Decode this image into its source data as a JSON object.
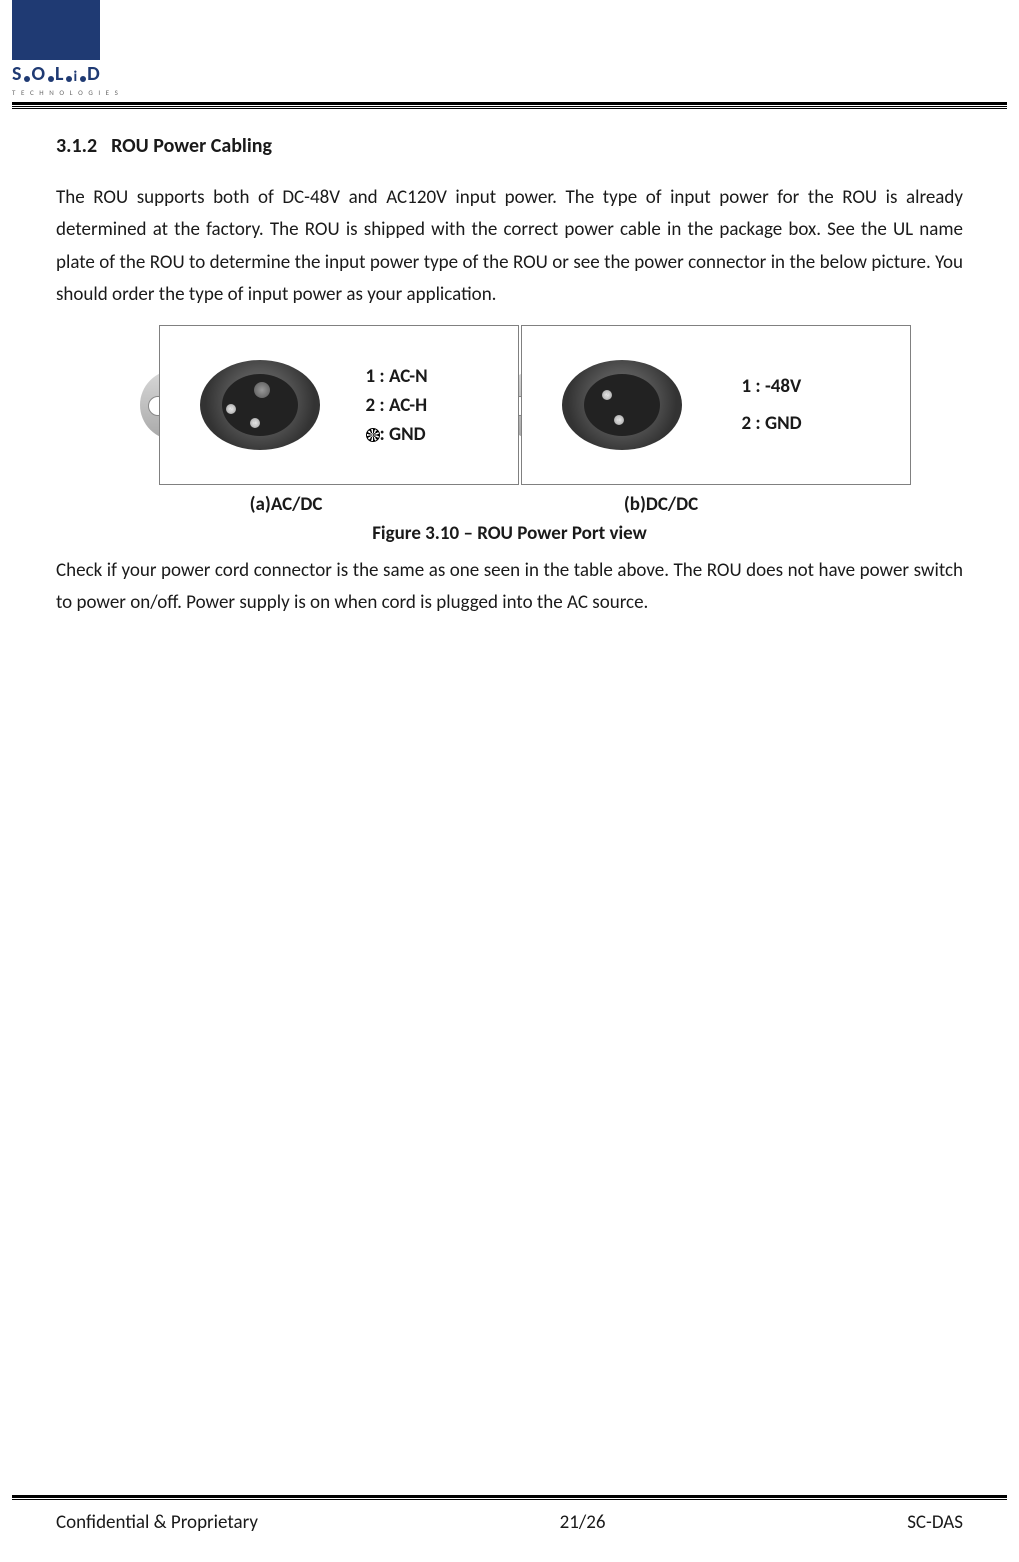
{
  "logo": {
    "brand_letters": "S O L i D",
    "subtitle": "T E C H N O L O G I E S"
  },
  "heading": {
    "number": "3.1.2",
    "title": "ROU Power Cabling"
  },
  "paragraph1": "The ROU supports both of DC-48V and AC120V input power. The type of input power for the ROU is already determined at the factory. The ROU is shipped with the correct power cable in the package box. See the UL name plate of the ROU to determine the input power type of the ROU or see the power connector in the below picture. You should order the type of input power as your application.",
  "figure": {
    "panel_a": {
      "pins": {
        "p1": "1 : AC-N",
        "p2": "2 : AC-H",
        "p3": ": GND"
      },
      "sub": "(a)AC/DC"
    },
    "panel_b": {
      "pins": {
        "p1": "1 : -48V",
        "p2": "2 : GND"
      },
      "sub": "(b)DC/DC"
    },
    "caption": "Figure 3.10 – ROU Power Port view"
  },
  "paragraph2": "Check if your power cord connector is the same as one seen in the table above. The ROU does not have power switch to power on/off. Power supply is on when cord is plugged into the AC source.",
  "footer": {
    "left": "Confidential & Proprietary",
    "center": "21/26",
    "right": "SC-DAS"
  },
  "colors": {
    "brand": "#1f3a73",
    "text": "#1a1a1a",
    "border": "#000000",
    "cell_border": "#808080"
  }
}
